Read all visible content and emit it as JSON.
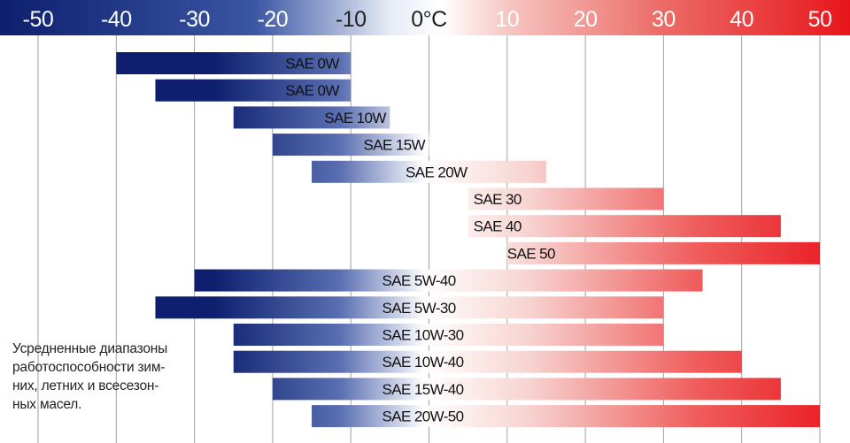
{
  "chart_data": {
    "type": "bar",
    "orientation": "horizontal-range",
    "title": "",
    "xlabel": "",
    "ylabel": "",
    "xlim": [
      -50,
      50
    ],
    "ticks": [
      {
        "value": -50,
        "label": "-50"
      },
      {
        "value": -40,
        "label": "-40"
      },
      {
        "value": -30,
        "label": "-30"
      },
      {
        "value": -20,
        "label": "-20"
      },
      {
        "value": -10,
        "label": "-10"
      },
      {
        "value": 0,
        "label": "0°C"
      },
      {
        "value": 10,
        "label": "10"
      },
      {
        "value": 20,
        "label": "20"
      },
      {
        "value": 30,
        "label": "30"
      },
      {
        "value": 40,
        "label": "40"
      },
      {
        "value": 50,
        "label": "50"
      }
    ],
    "grid": true,
    "series": [
      {
        "label": "SAE 0W",
        "start": -40,
        "end": -10
      },
      {
        "label": "SAE 0W",
        "start": -35,
        "end": -10
      },
      {
        "label": "SAE 10W",
        "start": -25,
        "end": -5
      },
      {
        "label": "SAE 15W",
        "start": -20,
        "end": 0
      },
      {
        "label": "SAE 20W",
        "start": -15,
        "end": 15
      },
      {
        "label": "SAE 30",
        "start": 5,
        "end": 30
      },
      {
        "label": "SAE 40",
        "start": 5,
        "end": 45
      },
      {
        "label": "SAE 50",
        "start": 10,
        "end": 50
      },
      {
        "label": "SAE 5W-40",
        "start": -30,
        "end": 35
      },
      {
        "label": "SAE 5W-30",
        "start": -35,
        "end": 30
      },
      {
        "label": "SAE 10W-30",
        "start": -25,
        "end": 30
      },
      {
        "label": "SAE 10W-40",
        "start": -25,
        "end": 40
      },
      {
        "label": "SAE 15W-40",
        "start": -20,
        "end": 45
      },
      {
        "label": "SAE 20W-50",
        "start": -15,
        "end": 50
      }
    ],
    "colors": {
      "cold": "#0d1f6e",
      "neutral": "#ffffff",
      "hot": "#e8151c"
    },
    "note": "Усредненные диапазоны\nработоспособности зим-\nних, летних и всесезон-\nных масел."
  }
}
